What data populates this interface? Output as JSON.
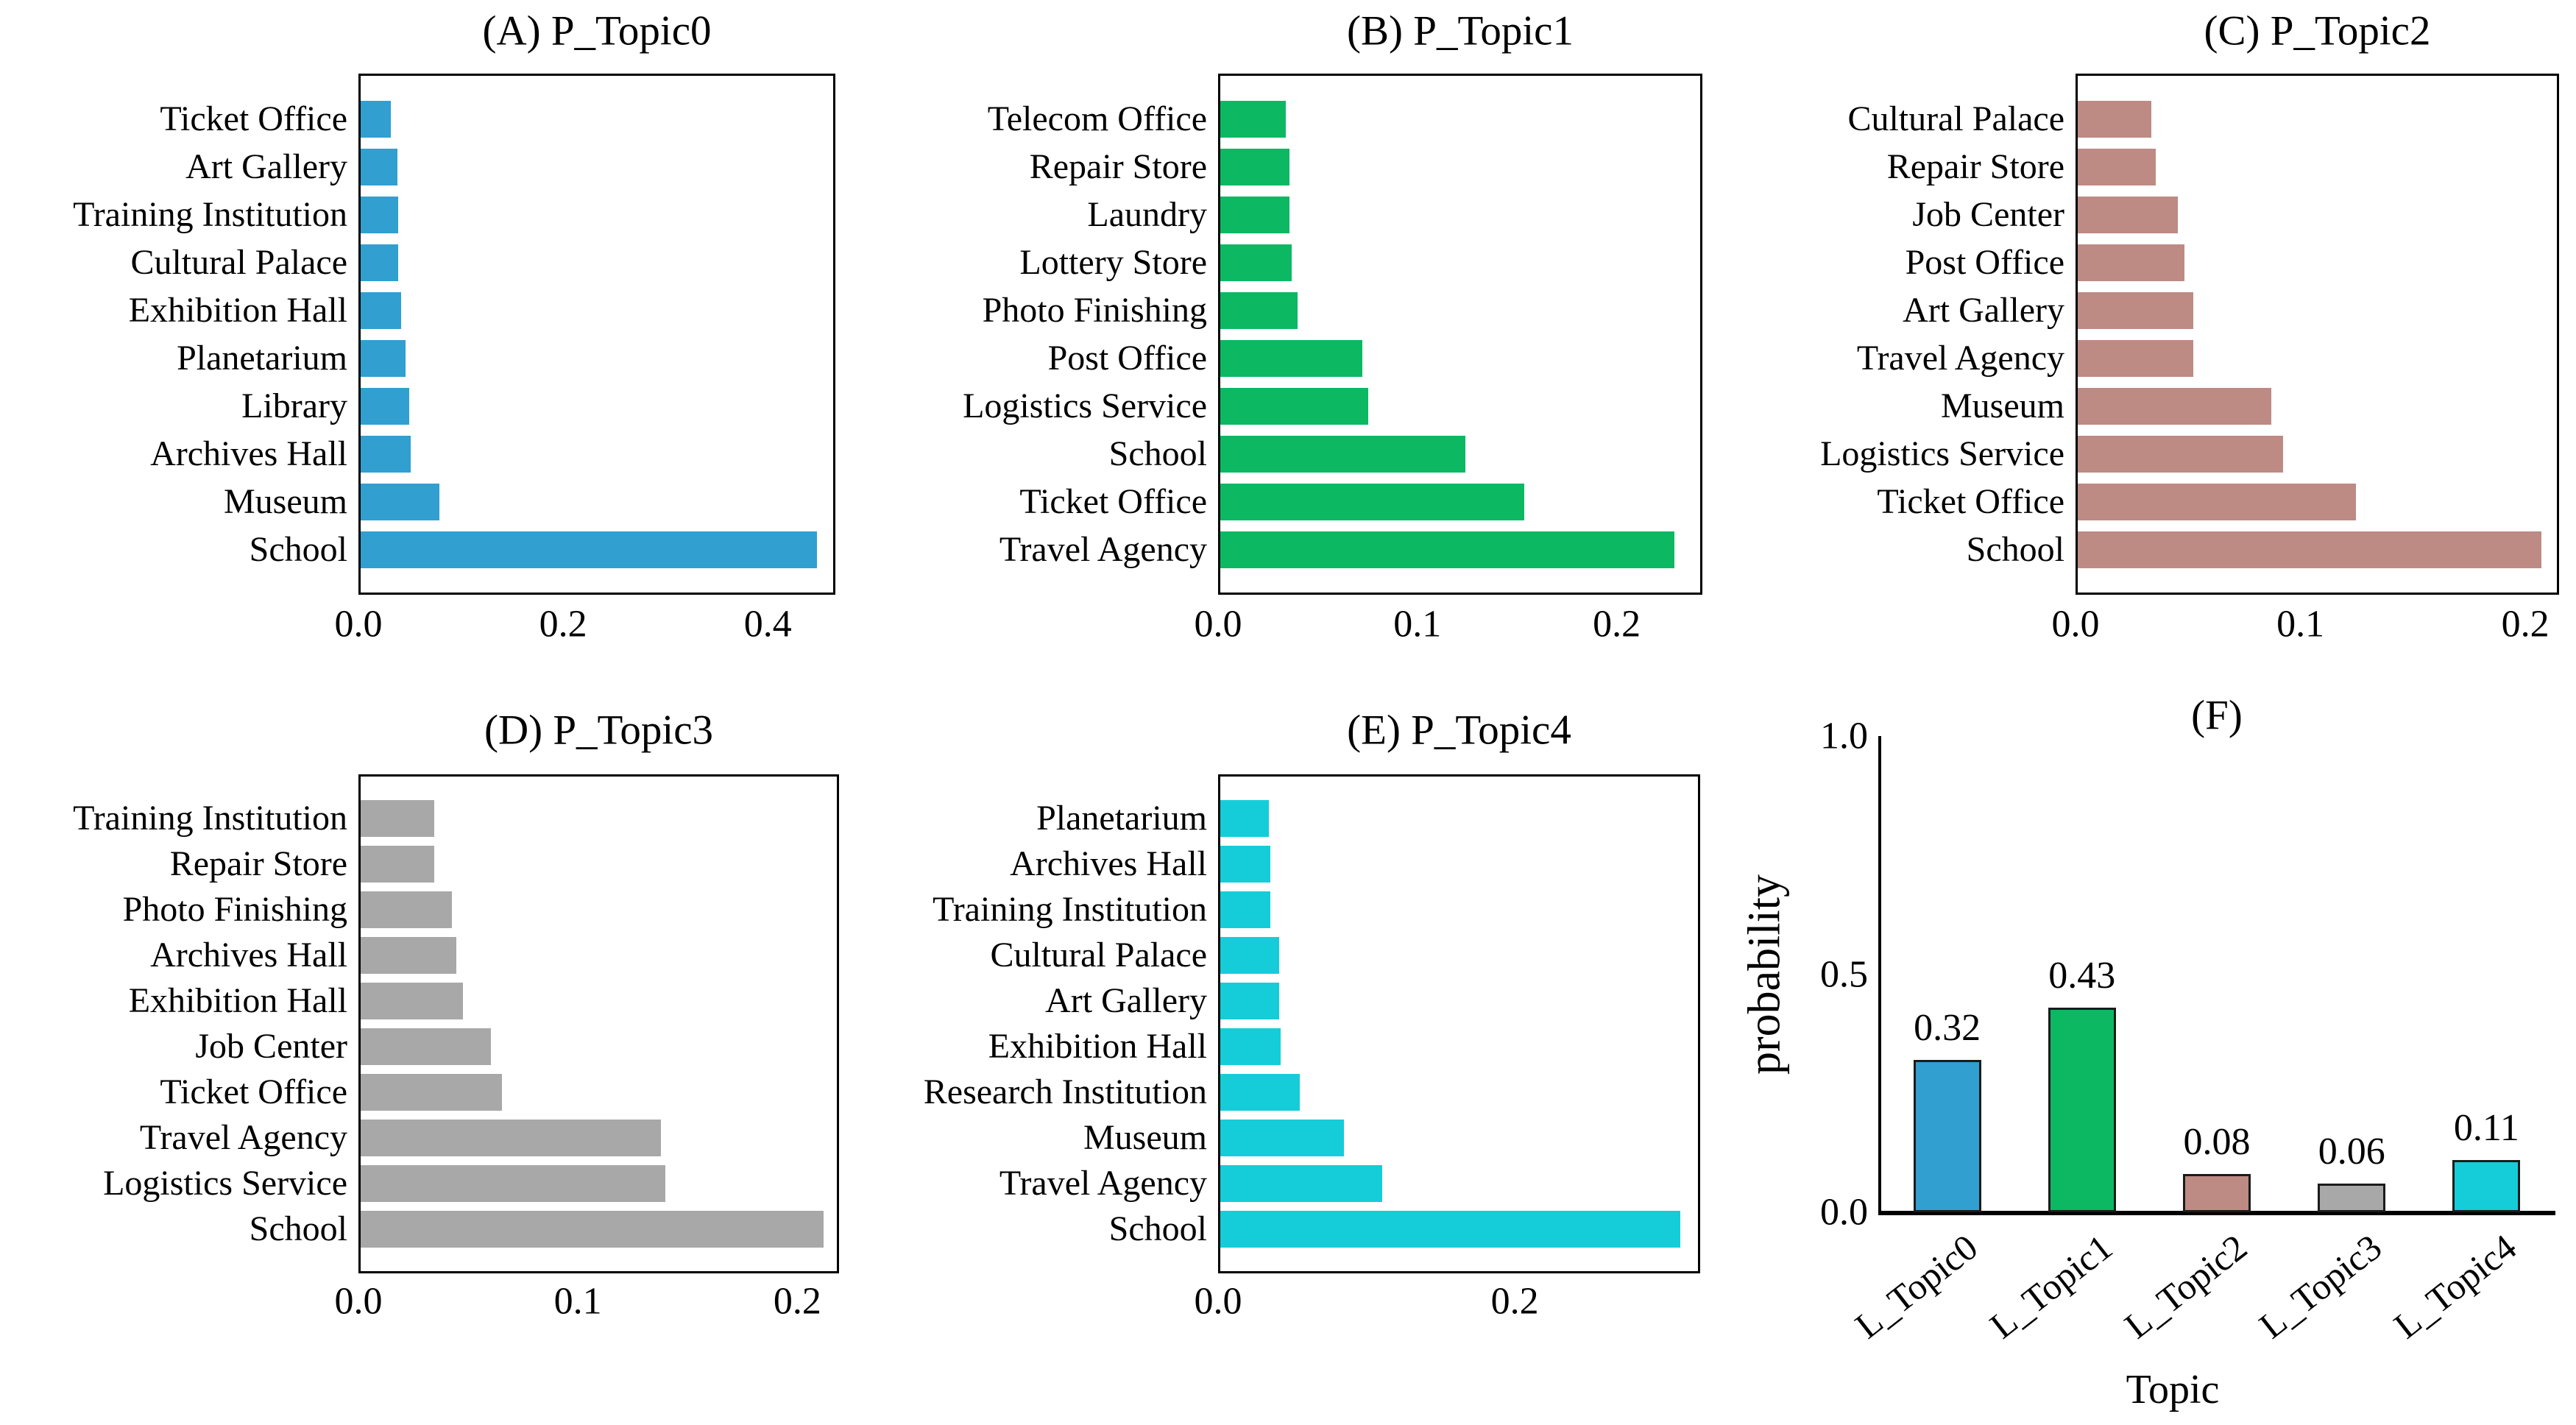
{
  "chart_data": [
    {
      "id": "A",
      "type": "bar",
      "orientation": "horizontal",
      "title": "(A) P_Topic0",
      "color": "#319fd0",
      "xlim": [
        0,
        0.466
      ],
      "xtick_labels": [
        "0.0",
        "0.2",
        "0.4"
      ],
      "xtick_values": [
        0.0,
        0.2,
        0.4
      ],
      "categories": [
        "Ticket Office",
        "Art Gallery",
        "Training Institution",
        "Cultural Palace",
        "Exhibition Hall",
        "Planetarium",
        "Library",
        "Archives Hall",
        "Museum",
        "School"
      ],
      "values": [
        0.03,
        0.036,
        0.037,
        0.037,
        0.04,
        0.044,
        0.048,
        0.049,
        0.078,
        0.45
      ]
    },
    {
      "id": "B",
      "type": "bar",
      "orientation": "horizontal",
      "title": "(B) P_Topic1",
      "color": "#0db863",
      "xlim": [
        0,
        0.243
      ],
      "xtick_labels": [
        "0.0",
        "0.1",
        "0.2"
      ],
      "xtick_values": [
        0.0,
        0.1,
        0.2
      ],
      "categories": [
        "Telecom Office",
        "Repair Store",
        "Laundry",
        "Lottery Store",
        "Photo Finishing",
        "Post Office",
        "Logistics Service",
        "School",
        "Ticket Office",
        "Travel Agency"
      ],
      "values": [
        0.033,
        0.035,
        0.035,
        0.036,
        0.039,
        0.072,
        0.075,
        0.124,
        0.154,
        0.23
      ]
    },
    {
      "id": "C",
      "type": "bar",
      "orientation": "horizontal",
      "title": "(C) P_Topic2",
      "color": "#bd8a84",
      "xlim": [
        0,
        0.215
      ],
      "xtick_labels": [
        "0.0",
        "0.1",
        "0.2"
      ],
      "xtick_values": [
        0.0,
        0.1,
        0.2
      ],
      "categories": [
        "Cultural Palace",
        "Repair Store",
        "Job Center",
        "Post Office",
        "Art Gallery",
        "Travel Agency",
        "Museum",
        "Logistics Service",
        "Ticket Office",
        "School"
      ],
      "values": [
        0.033,
        0.035,
        0.045,
        0.048,
        0.052,
        0.052,
        0.087,
        0.092,
        0.125,
        0.208
      ]
    },
    {
      "id": "D",
      "type": "bar",
      "orientation": "horizontal",
      "title": "(D) P_Topic3",
      "color": "#a8a8a8",
      "xlim": [
        0,
        0.219
      ],
      "xtick_labels": [
        "0.0",
        "0.1",
        "0.2"
      ],
      "xtick_values": [
        0.0,
        0.1,
        0.2
      ],
      "categories": [
        "Training Institution",
        "Repair Store",
        "Photo Finishing",
        "Archives Hall",
        "Exhibition Hall",
        "Job Center",
        "Ticket Office",
        "Travel Agency",
        "Logistics Service",
        "School"
      ],
      "values": [
        0.034,
        0.034,
        0.042,
        0.044,
        0.047,
        0.06,
        0.065,
        0.138,
        0.14,
        0.213
      ]
    },
    {
      "id": "E",
      "type": "bar",
      "orientation": "horizontal",
      "title": "(E) P_Topic4",
      "color": "#15cdd8",
      "xlim": [
        0,
        0.325
      ],
      "xtick_labels": [
        "0.0",
        "0.2"
      ],
      "xtick_values": [
        0.0,
        0.2
      ],
      "categories": [
        "Planetarium",
        "Archives Hall",
        "Training Institution",
        "Cultural Palace",
        "Art Gallery",
        "Exhibition Hall",
        "Research Institution",
        "Museum",
        "Travel Agency",
        "School"
      ],
      "values": [
        0.033,
        0.034,
        0.034,
        0.04,
        0.04,
        0.041,
        0.054,
        0.084,
        0.11,
        0.313
      ]
    },
    {
      "id": "F",
      "type": "bar",
      "orientation": "vertical",
      "title": "(F)",
      "ylabel": "probability",
      "xlabel": "Topic",
      "ylim": [
        0,
        1.0
      ],
      "ytick_labels": [
        "0.0",
        "0.5",
        "1.0"
      ],
      "ytick_values": [
        0.0,
        0.5,
        1.0
      ],
      "categories": [
        "L_Topic0",
        "L_Topic1",
        "L_Topic2",
        "L_Topic3",
        "L_Topic4"
      ],
      "values": [
        0.32,
        0.43,
        0.08,
        0.06,
        0.11
      ],
      "bar_labels": [
        "0.32",
        "0.43",
        "0.08",
        "0.06",
        "0.11"
      ],
      "colors": [
        "#319fd0",
        "#0db863",
        "#bd8a84",
        "#a8a8a8",
        "#15cdd8"
      ]
    }
  ]
}
